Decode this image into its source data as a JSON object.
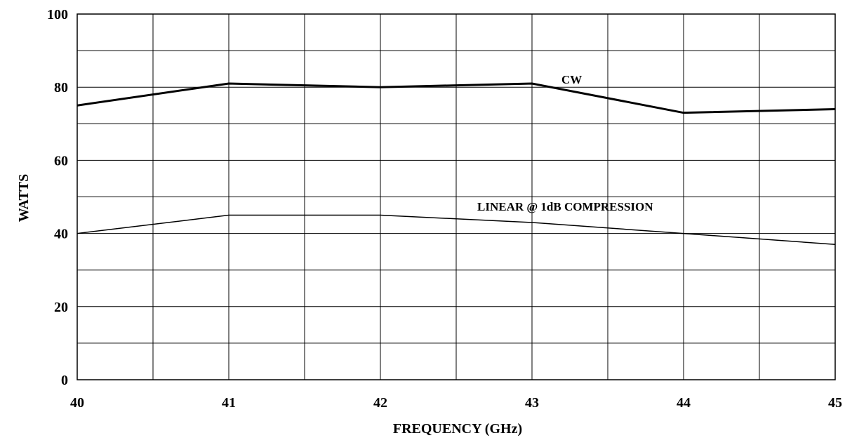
{
  "chart_data": {
    "type": "line",
    "title": "",
    "xlabel": "FREQUENCY (GHz)",
    "ylabel": "WATTS",
    "xlim": [
      40,
      45
    ],
    "ylim": [
      0,
      100
    ],
    "x_ticks": [
      "40",
      "41",
      "42",
      "43",
      "44",
      "45"
    ],
    "y_ticks": [
      "0",
      "20",
      "40",
      "60",
      "80",
      "100"
    ],
    "grid": true,
    "legend": "none",
    "x": [
      40,
      41,
      42,
      43,
      44,
      45
    ],
    "series": [
      {
        "name": "CW",
        "values": [
          75,
          81,
          80,
          81,
          73,
          74
        ]
      },
      {
        "name": "LINEAR @ 1dB COMPRESSION",
        "values": [
          40,
          45,
          45,
          43,
          40,
          37
        ]
      }
    ]
  }
}
